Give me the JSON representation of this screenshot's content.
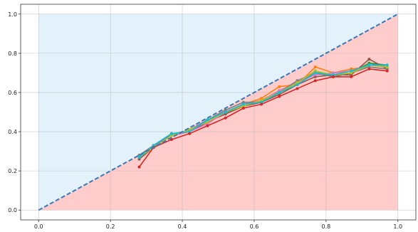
{
  "chart_data": {
    "type": "line",
    "title": "",
    "xlabel": "",
    "ylabel": "",
    "xlim": [
      -0.05,
      1.05
    ],
    "ylim": [
      -0.05,
      1.05
    ],
    "xticks": [
      "0.0",
      "0.2",
      "0.4",
      "0.6",
      "0.8",
      "1.0"
    ],
    "yticks": [
      "0.0",
      "0.2",
      "0.4",
      "0.6",
      "0.8",
      "1.0"
    ],
    "grid": true,
    "legend": "none",
    "regions": {
      "above_diagonal_color": "#e3f2fa",
      "below_diagonal_color": "#ffcccc"
    },
    "reference_line": {
      "x": [
        0,
        1
      ],
      "y": [
        0,
        1
      ],
      "color": "#3a78b5",
      "style": "dashed"
    },
    "x": [
      0.28,
      0.32,
      0.37,
      0.42,
      0.47,
      0.52,
      0.57,
      0.62,
      0.67,
      0.72,
      0.77,
      0.82,
      0.87,
      0.92,
      0.97
    ],
    "series": [
      {
        "color": "#1f77b4",
        "values": [
          0.27,
          0.33,
          0.39,
          0.4,
          0.46,
          0.5,
          0.54,
          0.55,
          0.6,
          0.65,
          0.7,
          0.69,
          0.7,
          0.75,
          0.73
        ]
      },
      {
        "color": "#ff7f0e",
        "values": [
          0.28,
          0.33,
          0.38,
          0.41,
          0.45,
          0.49,
          0.54,
          0.57,
          0.63,
          0.64,
          0.73,
          0.7,
          0.72,
          0.73,
          0.72
        ]
      },
      {
        "color": "#2ca02c",
        "values": [
          0.28,
          0.32,
          0.39,
          0.4,
          0.45,
          0.5,
          0.53,
          0.55,
          0.61,
          0.65,
          0.71,
          0.68,
          0.7,
          0.75,
          0.74
        ]
      },
      {
        "color": "#9467bd",
        "values": [
          0.27,
          0.33,
          0.38,
          0.41,
          0.46,
          0.5,
          0.54,
          0.56,
          0.6,
          0.66,
          0.69,
          0.7,
          0.71,
          0.74,
          0.73
        ]
      },
      {
        "color": "#8c564b",
        "values": [
          0.26,
          0.32,
          0.38,
          0.4,
          0.45,
          0.49,
          0.53,
          0.55,
          0.59,
          0.64,
          0.68,
          0.69,
          0.69,
          0.77,
          0.72
        ]
      },
      {
        "color": "#e377c2",
        "values": [
          0.27,
          0.32,
          0.38,
          0.4,
          0.44,
          0.5,
          0.54,
          0.56,
          0.61,
          0.65,
          0.69,
          0.7,
          0.71,
          0.74,
          0.73
        ]
      },
      {
        "color": "#7f7f7f",
        "values": [
          0.28,
          0.33,
          0.39,
          0.4,
          0.46,
          0.51,
          0.55,
          0.55,
          0.6,
          0.66,
          0.7,
          0.68,
          0.7,
          0.73,
          0.72
        ]
      },
      {
        "color": "#bcbd22",
        "values": [
          0.27,
          0.32,
          0.38,
          0.41,
          0.45,
          0.5,
          0.53,
          0.56,
          0.6,
          0.65,
          0.71,
          0.69,
          0.7,
          0.74,
          0.73
        ]
      },
      {
        "color": "#17becf",
        "values": [
          0.27,
          0.33,
          0.39,
          0.4,
          0.46,
          0.5,
          0.54,
          0.55,
          0.6,
          0.64,
          0.7,
          0.69,
          0.71,
          0.74,
          0.74
        ]
      },
      {
        "color": "#d62728",
        "values": [
          0.22,
          0.32,
          0.36,
          0.39,
          0.43,
          0.47,
          0.52,
          0.54,
          0.58,
          0.62,
          0.66,
          0.68,
          0.68,
          0.72,
          0.71
        ]
      }
    ]
  }
}
